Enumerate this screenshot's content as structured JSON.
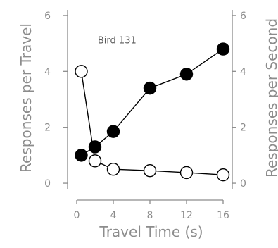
{
  "chart_data": {
    "type": "line",
    "x": [
      0.5,
      2,
      4,
      8,
      12,
      16
    ],
    "series": [
      {
        "marker": "filled",
        "color": "#000000",
        "values": [
          1.0,
          1.3,
          1.85,
          3.4,
          3.9,
          4.8
        ]
      },
      {
        "marker": "open",
        "color": "#ffffff",
        "values": [
          4.0,
          0.8,
          0.5,
          0.45,
          0.38,
          0.3
        ]
      }
    ],
    "xlabel": "Travel Time (s)",
    "ylabel": "Responses per Travel",
    "y2label": "Responses per Second",
    "annotation": "Bird 131",
    "xlim": [
      -1,
      17
    ],
    "ylim": [
      -0.2,
      6.2
    ],
    "y2lim": [
      -0.2,
      6.2
    ],
    "xticks": [
      0,
      4,
      8,
      12,
      16
    ],
    "yticks": [
      0,
      2,
      4,
      6
    ],
    "y2ticks": [
      0,
      2,
      4,
      6
    ],
    "grid": false
  }
}
